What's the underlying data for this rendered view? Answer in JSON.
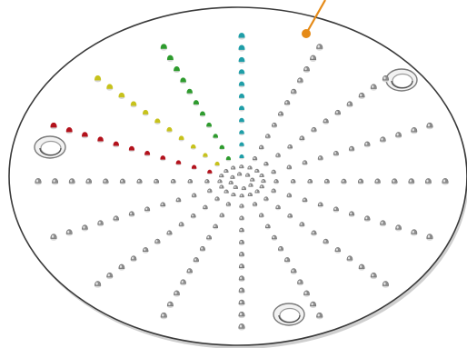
{
  "plate": {
    "fill": "#ffffff",
    "edge_color": "#3a3a3a",
    "shadow_color": "#cfcfcf"
  },
  "spokes": {
    "count": 16,
    "bumps_per_spoke": 11,
    "neutral_color": "#8c8c8c",
    "highlighted": [
      {
        "color": "#1f9ea8"
      },
      {
        "color": "#2e9b2e"
      },
      {
        "color": "#c7c21c"
      },
      {
        "color": "#b3121c"
      }
    ]
  },
  "holes": {
    "count": 3,
    "rim_color": "#7a7a7a"
  },
  "pointer": {
    "color": "#e58a17"
  }
}
